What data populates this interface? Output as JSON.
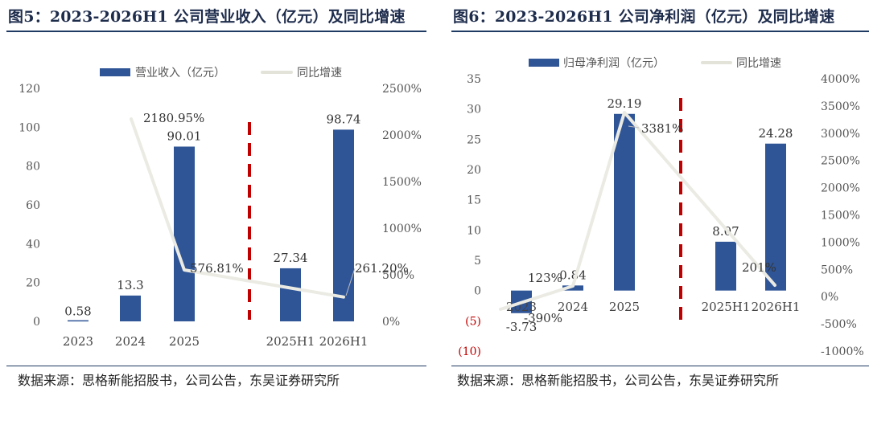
{
  "panels": [
    {
      "title": "图5：2023-2026H1 公司营业收入（亿元）及同比增速",
      "source": "数据来源：思格新能招股书，公司公告，东吴证券研究所"
    },
    {
      "title": "图6：2023-2026H1 公司净利润（亿元）及同比增速",
      "source": "数据来源：思格新能招股书，公司公告，东吴证券研究所"
    }
  ],
  "colors": {
    "bar": "#2f5597",
    "line": "#ebebe4",
    "divider": "#c00000",
    "rule": "#1f3a63",
    "negative_tick": "#c00000"
  },
  "chart_data": [
    {
      "type": "bar",
      "categories": [
        "2023",
        "2024",
        "2025",
        "2025H1",
        "2026H1"
      ],
      "series": [
        {
          "name": "营业收入（亿元）",
          "type": "bar",
          "axis": "left",
          "values": [
            0.58,
            13.3,
            90.01,
            27.34,
            98.74
          ],
          "labels": [
            "0.58",
            "13.3",
            "90.01",
            "27.34",
            "98.74"
          ]
        },
        {
          "name": "同比增速",
          "type": "line",
          "axis": "right",
          "values": [
            null,
            2180.95,
            576.81,
            null,
            261.2
          ],
          "labels": [
            "",
            "2180.95%",
            "576.81%",
            "",
            "261.20%"
          ]
        }
      ],
      "yleft": {
        "ticks": [
          "0",
          "20",
          "40",
          "60",
          "80",
          "100",
          "120"
        ],
        "lim": [
          0,
          120
        ]
      },
      "yright": {
        "ticks": [
          "0%",
          "500%",
          "1000%",
          "1500%",
          "2000%",
          "2500%"
        ],
        "lim": [
          0,
          2500
        ]
      },
      "legend": "top",
      "grid": false,
      "divider": "between 2025 and 2025H1"
    },
    {
      "type": "bar",
      "categories": [
        "2023",
        "2024",
        "2025",
        "2025H1",
        "2026H1"
      ],
      "series": [
        {
          "name": "归母净利润（亿元）",
          "type": "bar",
          "axis": "left",
          "values": [
            -3.73,
            0.84,
            29.19,
            8.07,
            24.28
          ],
          "labels": [
            "-3.73",
            "0.84",
            "29.19",
            "8.07",
            "24.28"
          ]
        },
        {
          "name": "同比增速",
          "type": "line",
          "axis": "right",
          "values": [
            -390,
            123,
            3381,
            null,
            201
          ],
          "labels": [
            "-390%",
            "123%",
            "3381%",
            "",
            "201%"
          ]
        }
      ],
      "yleft": {
        "ticks": [
          "(10)",
          "(5)",
          "0",
          "5",
          "10",
          "15",
          "20",
          "25",
          "30",
          "35"
        ],
        "lim": [
          -10,
          35
        ]
      },
      "yright": {
        "ticks": [
          "-1000%",
          "-500%",
          "0%",
          "500%",
          "1000%",
          "1500%",
          "2000%",
          "2500%",
          "3000%",
          "3500%",
          "4000%"
        ],
        "lim": [
          -1000,
          4000
        ]
      },
      "legend": "top",
      "grid": false,
      "divider": "between 2025 and 2025H1"
    }
  ],
  "source_wrap": [
    "所",
    "究所"
  ]
}
